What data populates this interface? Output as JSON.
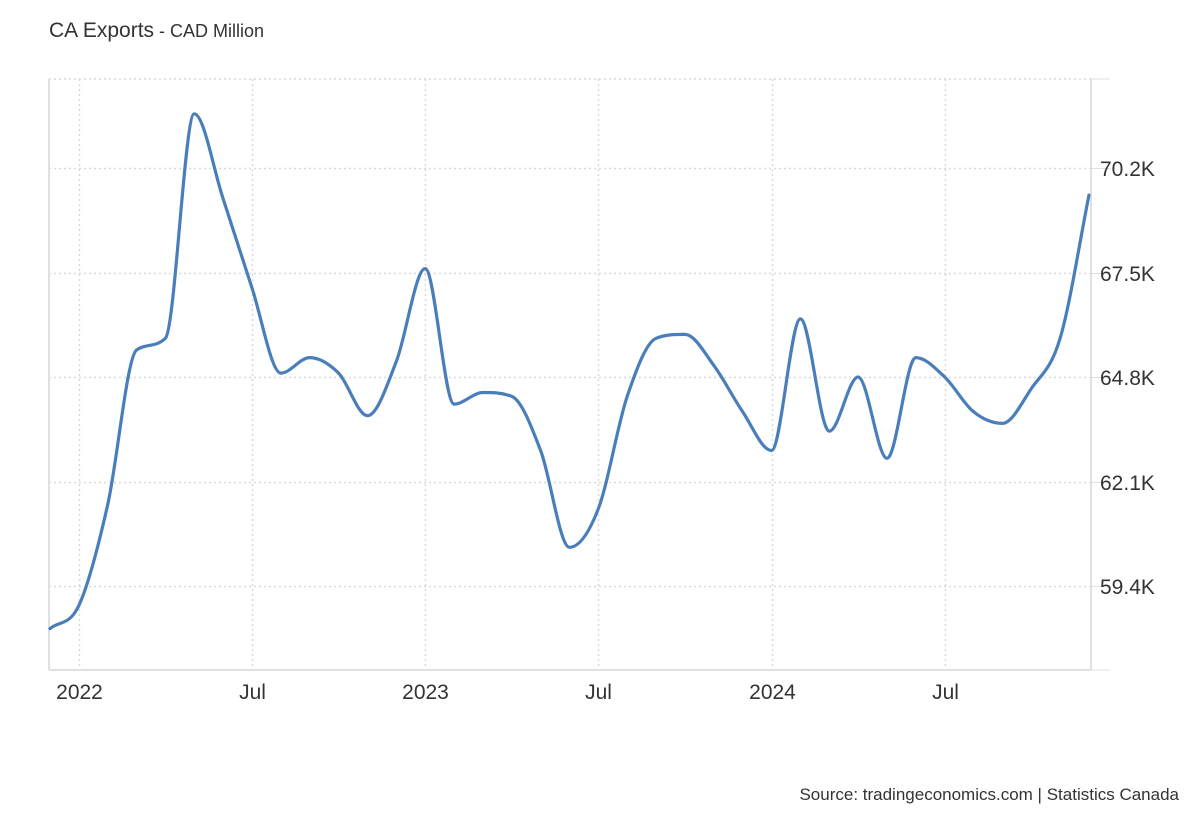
{
  "header": {
    "title": "CA Exports",
    "separator": " - ",
    "unit": "CAD Million"
  },
  "footer": {
    "source": "Source: tradingeconomics.com | Statistics Canada"
  },
  "colors": {
    "line": "#4a7ebb",
    "grid": "#d9d9d9",
    "axis": "#e0e0e0",
    "text": "#333333"
  },
  "chart_data": {
    "type": "line",
    "title": "CA Exports - CAD Million",
    "xlabel": "",
    "ylabel": "",
    "y_axis_position": "right",
    "ylim": [
      57.2,
      73.3
    ],
    "grid": true,
    "legend": null,
    "x_tick_labels": [
      "2022",
      "Jul",
      "2023",
      "Jul",
      "2024",
      "Jul"
    ],
    "y_tick_labels": [
      "59.4K",
      "62.1K",
      "64.8K",
      "67.5K",
      "70.2K"
    ],
    "y_tick_values": [
      59.4,
      62.1,
      64.8,
      67.5,
      70.2
    ],
    "x": [
      "2021-12",
      "2022-01",
      "2022-02",
      "2022-03",
      "2022-04",
      "2022-05",
      "2022-06",
      "2022-07",
      "2022-08",
      "2022-09",
      "2022-10",
      "2022-11",
      "2022-12",
      "2023-01",
      "2023-02",
      "2023-03",
      "2023-04",
      "2023-05",
      "2023-06",
      "2023-07",
      "2023-08",
      "2023-09",
      "2023-10",
      "2023-11",
      "2023-12",
      "2024-01",
      "2024-02",
      "2024-03",
      "2024-04",
      "2024-05",
      "2024-06",
      "2024-07",
      "2024-08",
      "2024-09",
      "2024-10",
      "2024-11",
      "2024-12"
    ],
    "series": [
      {
        "name": "CA Exports (CAD Million, thousands)",
        "values": [
          58.3,
          58.9,
          61.5,
          65.5,
          65.8,
          71.6,
          69.4,
          67.1,
          64.9,
          65.3,
          64.9,
          63.8,
          65.2,
          67.6,
          64.1,
          64.4,
          64.3,
          62.9,
          60.4,
          61.4,
          64.3,
          65.8,
          65.9,
          65.1,
          63.9,
          62.9,
          66.3,
          63.4,
          64.8,
          62.7,
          65.3,
          64.8,
          63.9,
          63.6,
          64.5,
          65.8,
          69.5
        ]
      }
    ]
  }
}
